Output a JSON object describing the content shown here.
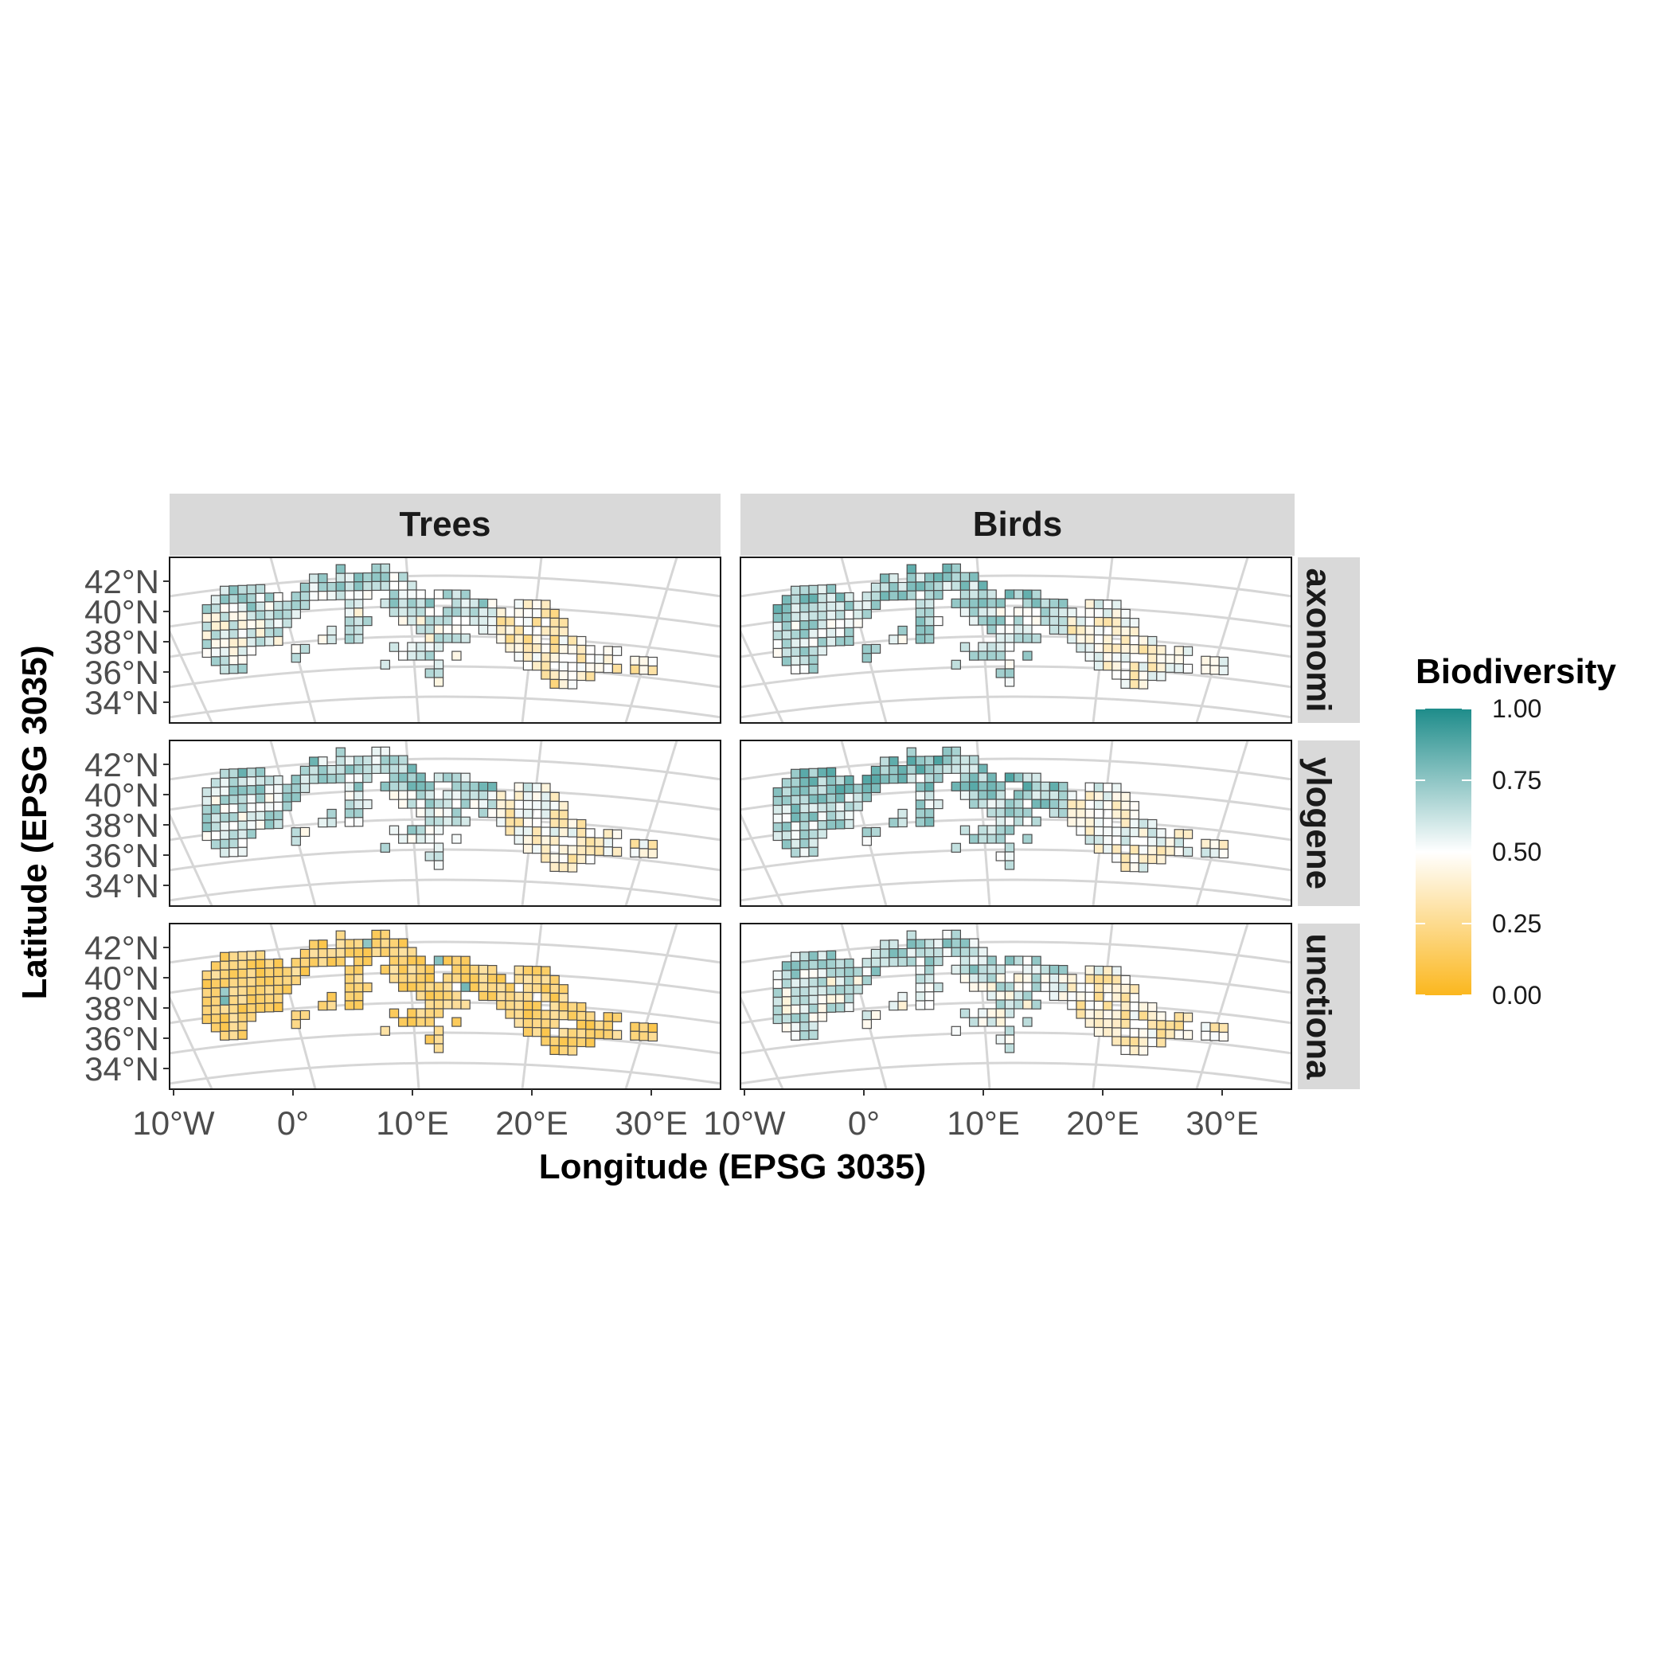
{
  "figure": {
    "x_axis_title": "Longitude (EPSG 3035)",
    "y_axis_title": "Latitude (EPSG 3035)",
    "columns": [
      "Trees",
      "Birds"
    ],
    "rows": [
      {
        "label_full": "Taxonomic",
        "label_visible": "axonomi"
      },
      {
        "label_full": "Phylogenetic",
        "label_visible": "ylogene"
      },
      {
        "label_full": "Functional",
        "label_visible": "unctiona"
      }
    ]
  },
  "chart_data": {
    "type": "heatmap",
    "x_ticks": [
      "10°W",
      "0°",
      "10°E",
      "20°E",
      "30°E"
    ],
    "y_ticks": [
      "42°N",
      "40°N",
      "38°N",
      "36°N",
      "34°N"
    ],
    "legend": {
      "title": "Biodiversity",
      "ticks": [
        "1.00",
        "0.75",
        "0.50",
        "0.25",
        "0.00"
      ],
      "range": [
        0,
        1
      ],
      "low_color": "#FBB71E",
      "mid_color": "#FFFFFF",
      "high_color": "#1E8C8A"
    },
    "panel_levels": {
      "Trees|Taxonomic": 0.55,
      "Birds|Taxonomic": 0.62,
      "Trees|Phylogenetic": 0.6,
      "Birds|Phylogenetic": 0.66,
      "Trees|Functional": 0.2,
      "Birds|Functional": 0.56
    }
  }
}
